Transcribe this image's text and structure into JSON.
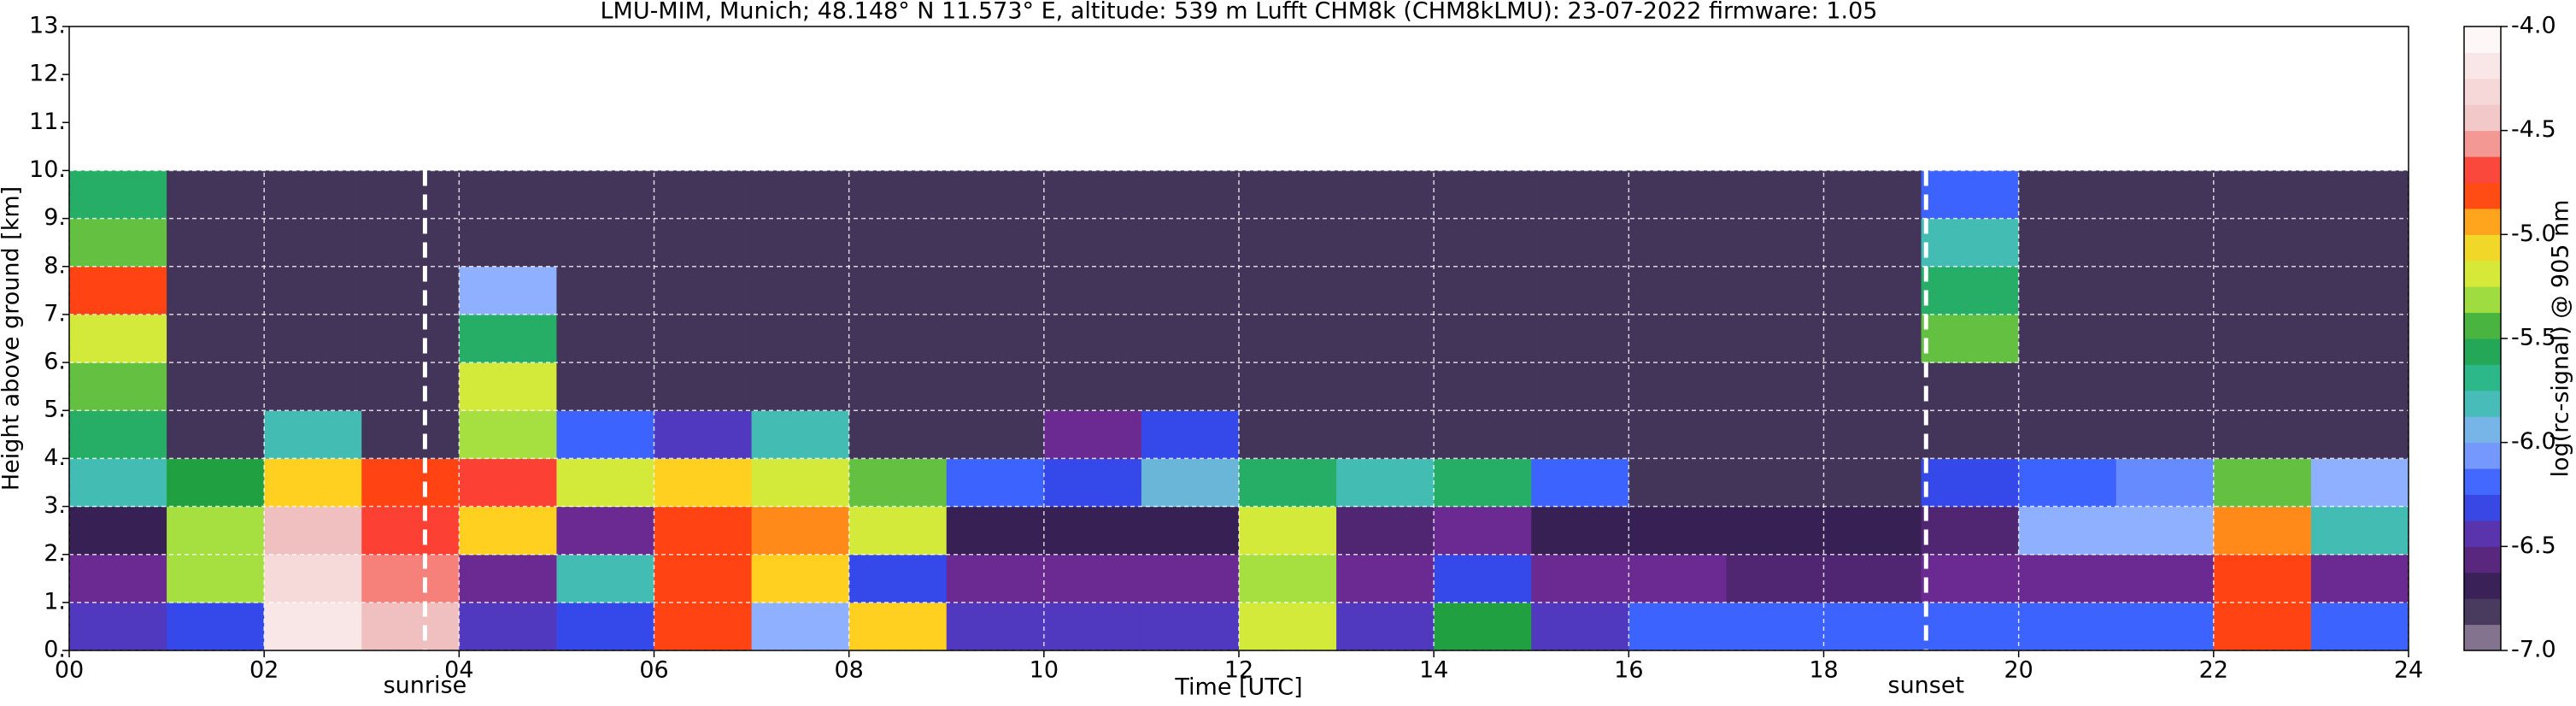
{
  "chart_data": {
    "type": "heatmap",
    "title": "LMU-MIM, Munich; 48.148° N 11.573° E, altitude: 539 m    Lufft CHM8k (CHM8kLMU): 23-07-2022    firmware: 1.05",
    "xlabel": "Time [UTC]",
    "ylabel": "Height above ground [km]",
    "colorbar_label": "log(rc-signal) @ 905 nm",
    "xlim": [
      0,
      24
    ],
    "xticks": [
      {
        "value": 0,
        "label": "00"
      },
      {
        "value": 2,
        "label": "02"
      },
      {
        "value": 4,
        "label": "04"
      },
      {
        "value": 6,
        "label": "06"
      },
      {
        "value": 8,
        "label": "08"
      },
      {
        "value": 10,
        "label": "10"
      },
      {
        "value": 12,
        "label": "12"
      },
      {
        "value": 14,
        "label": "14"
      },
      {
        "value": 16,
        "label": "16"
      },
      {
        "value": 18,
        "label": "18"
      },
      {
        "value": 20,
        "label": "20"
      },
      {
        "value": 22,
        "label": "22"
      },
      {
        "value": 24,
        "label": "24"
      }
    ],
    "ylim": [
      0,
      13
    ],
    "yticks": [
      {
        "value": 0,
        "label": "0."
      },
      {
        "value": 1,
        "label": "1."
      },
      {
        "value": 2,
        "label": "2."
      },
      {
        "value": 3,
        "label": "3."
      },
      {
        "value": 4,
        "label": "4."
      },
      {
        "value": 5,
        "label": "5."
      },
      {
        "value": 6,
        "label": "6."
      },
      {
        "value": 7,
        "label": "7."
      },
      {
        "value": 8,
        "label": "8."
      },
      {
        "value": 9,
        "label": "9."
      },
      {
        "value": 10,
        "label": "10."
      },
      {
        "value": 11,
        "label": "11."
      },
      {
        "value": 12,
        "label": "12."
      },
      {
        "value": 13,
        "label": "13."
      }
    ],
    "clim": [
      -7,
      -4
    ],
    "cticks": [
      {
        "value": -7,
        "label": "-7.0"
      },
      {
        "value": -6.5,
        "label": "-6.5"
      },
      {
        "value": -6,
        "label": "-6.0"
      },
      {
        "value": -5.5,
        "label": "-5.5"
      },
      {
        "value": -5,
        "label": "-5.0"
      },
      {
        "value": -4.5,
        "label": "-4.5"
      },
      {
        "value": -4,
        "label": "-4.0"
      }
    ],
    "colorscale": [
      {
        "value": -7,
        "color": "#a08fa8"
      },
      {
        "value": -6.75,
        "color": "#2a1f45"
      },
      {
        "value": -6.5,
        "color": "#6a2a92"
      },
      {
        "value": -6.25,
        "color": "#2850ff"
      },
      {
        "value": -6,
        "color": "#8fb0ff"
      },
      {
        "value": -5.75,
        "color": "#30c0a0"
      },
      {
        "value": -5.5,
        "color": "#20a040"
      },
      {
        "value": -5.25,
        "color": "#c8f040"
      },
      {
        "value": -5,
        "color": "#ffd020"
      },
      {
        "value": -4.75,
        "color": "#ff2010"
      },
      {
        "value": -4.5,
        "color": "#f0c0c0"
      },
      {
        "value": -4,
        "color": "#ffffff"
      }
    ],
    "grid": true,
    "x_edges": [
      0,
      1,
      2,
      3,
      4,
      5,
      6,
      7,
      8,
      9,
      10,
      11,
      12,
      13,
      14,
      15,
      16,
      17,
      18,
      19,
      20,
      21,
      22,
      23,
      24
    ],
    "y_edges": [
      0,
      1,
      2,
      3,
      4,
      5,
      6,
      7,
      8,
      9,
      10
    ],
    "z": [
      [
        -6.4,
        -6.3,
        -4.2,
        -4.5,
        -6.4,
        -6.3,
        -4.8,
        -6.0,
        -5.0,
        -6.4,
        -6.4,
        -6.4,
        -5.2,
        -6.4,
        -5.5,
        -6.4,
        -6.2,
        -6.2,
        -6.2,
        -6.2,
        -6.2,
        -6.2,
        -4.8,
        -6.2
      ],
      [
        -6.5,
        -5.3,
        -4.3,
        -4.6,
        -6.5,
        -5.8,
        -4.8,
        -5.0,
        -6.3,
        -6.5,
        -6.5,
        -6.5,
        -5.3,
        -6.5,
        -6.3,
        -6.5,
        -6.5,
        -6.6,
        -6.6,
        -6.5,
        -6.5,
        -6.5,
        -4.8,
        -6.5
      ],
      [
        -6.7,
        -5.3,
        -4.5,
        -4.7,
        -5.0,
        -6.5,
        -4.8,
        -4.9,
        -5.2,
        -6.7,
        -6.7,
        -6.7,
        -5.2,
        -6.6,
        -6.5,
        -6.7,
        -6.7,
        -6.7,
        -6.7,
        -6.6,
        -6.0,
        -6.0,
        -4.9,
        -5.8
      ],
      [
        -5.8,
        -5.5,
        -5.0,
        -4.8,
        -4.7,
        -5.2,
        -5.0,
        -5.2,
        -5.4,
        -6.2,
        -6.3,
        -5.9,
        -5.6,
        -5.8,
        -5.6,
        -6.2,
        -6.8,
        -6.8,
        -6.8,
        -6.3,
        -6.2,
        -6.1,
        -5.4,
        -6.0
      ],
      [
        -5.6,
        -6.8,
        -5.8,
        -6.8,
        -5.3,
        -6.2,
        -6.4,
        -5.8,
        -6.8,
        -6.8,
        -6.5,
        -6.3,
        -6.8,
        -6.8,
        -6.8,
        -6.8,
        -6.8,
        -6.8,
        -6.8,
        -6.8,
        -6.8,
        -6.8,
        -6.8,
        -6.8
      ],
      [
        -5.4,
        -6.8,
        -6.8,
        -6.8,
        -5.2,
        -6.8,
        -6.8,
        -6.8,
        -6.8,
        -6.8,
        -6.8,
        -6.8,
        -6.8,
        -6.8,
        -6.8,
        -6.8,
        -6.8,
        -6.8,
        -6.8,
        -6.8,
        -6.8,
        -6.8,
        -6.8,
        -6.8
      ],
      [
        -5.2,
        -6.8,
        -6.8,
        -6.8,
        -5.6,
        -6.8,
        -6.8,
        -6.8,
        -6.8,
        -6.8,
        -6.8,
        -6.8,
        -6.8,
        -6.8,
        -6.8,
        -6.8,
        -6.8,
        -6.8,
        -6.8,
        -5.4,
        -6.8,
        -6.8,
        -6.8,
        -6.8
      ],
      [
        -4.8,
        -6.8,
        -6.8,
        -6.8,
        -6.0,
        -6.8,
        -6.8,
        -6.8,
        -6.8,
        -6.8,
        -6.8,
        -6.8,
        -6.8,
        -6.8,
        -6.8,
        -6.8,
        -6.8,
        -6.8,
        -6.8,
        -5.6,
        -6.8,
        -6.8,
        -6.8,
        -6.8
      ],
      [
        -5.4,
        -6.8,
        -6.8,
        -6.8,
        -6.8,
        -6.8,
        -6.8,
        -6.8,
        -6.8,
        -6.8,
        -6.8,
        -6.8,
        -6.8,
        -6.8,
        -6.8,
        -6.8,
        -6.8,
        -6.8,
        -6.8,
        -5.8,
        -6.8,
        -6.8,
        -6.8,
        -6.8
      ],
      [
        -5.6,
        -6.8,
        -6.8,
        -6.8,
        -6.8,
        -6.8,
        -6.8,
        -6.8,
        -6.8,
        -6.8,
        -6.8,
        -6.8,
        -6.8,
        -6.8,
        -6.8,
        -6.8,
        -6.8,
        -6.8,
        -6.8,
        -6.2,
        -6.8,
        -6.8,
        -6.8,
        -6.8
      ]
    ],
    "annotations": [
      {
        "x": 3.65,
        "text": "sunrise"
      },
      {
        "x": 19.05,
        "text": "sunset"
      }
    ]
  }
}
